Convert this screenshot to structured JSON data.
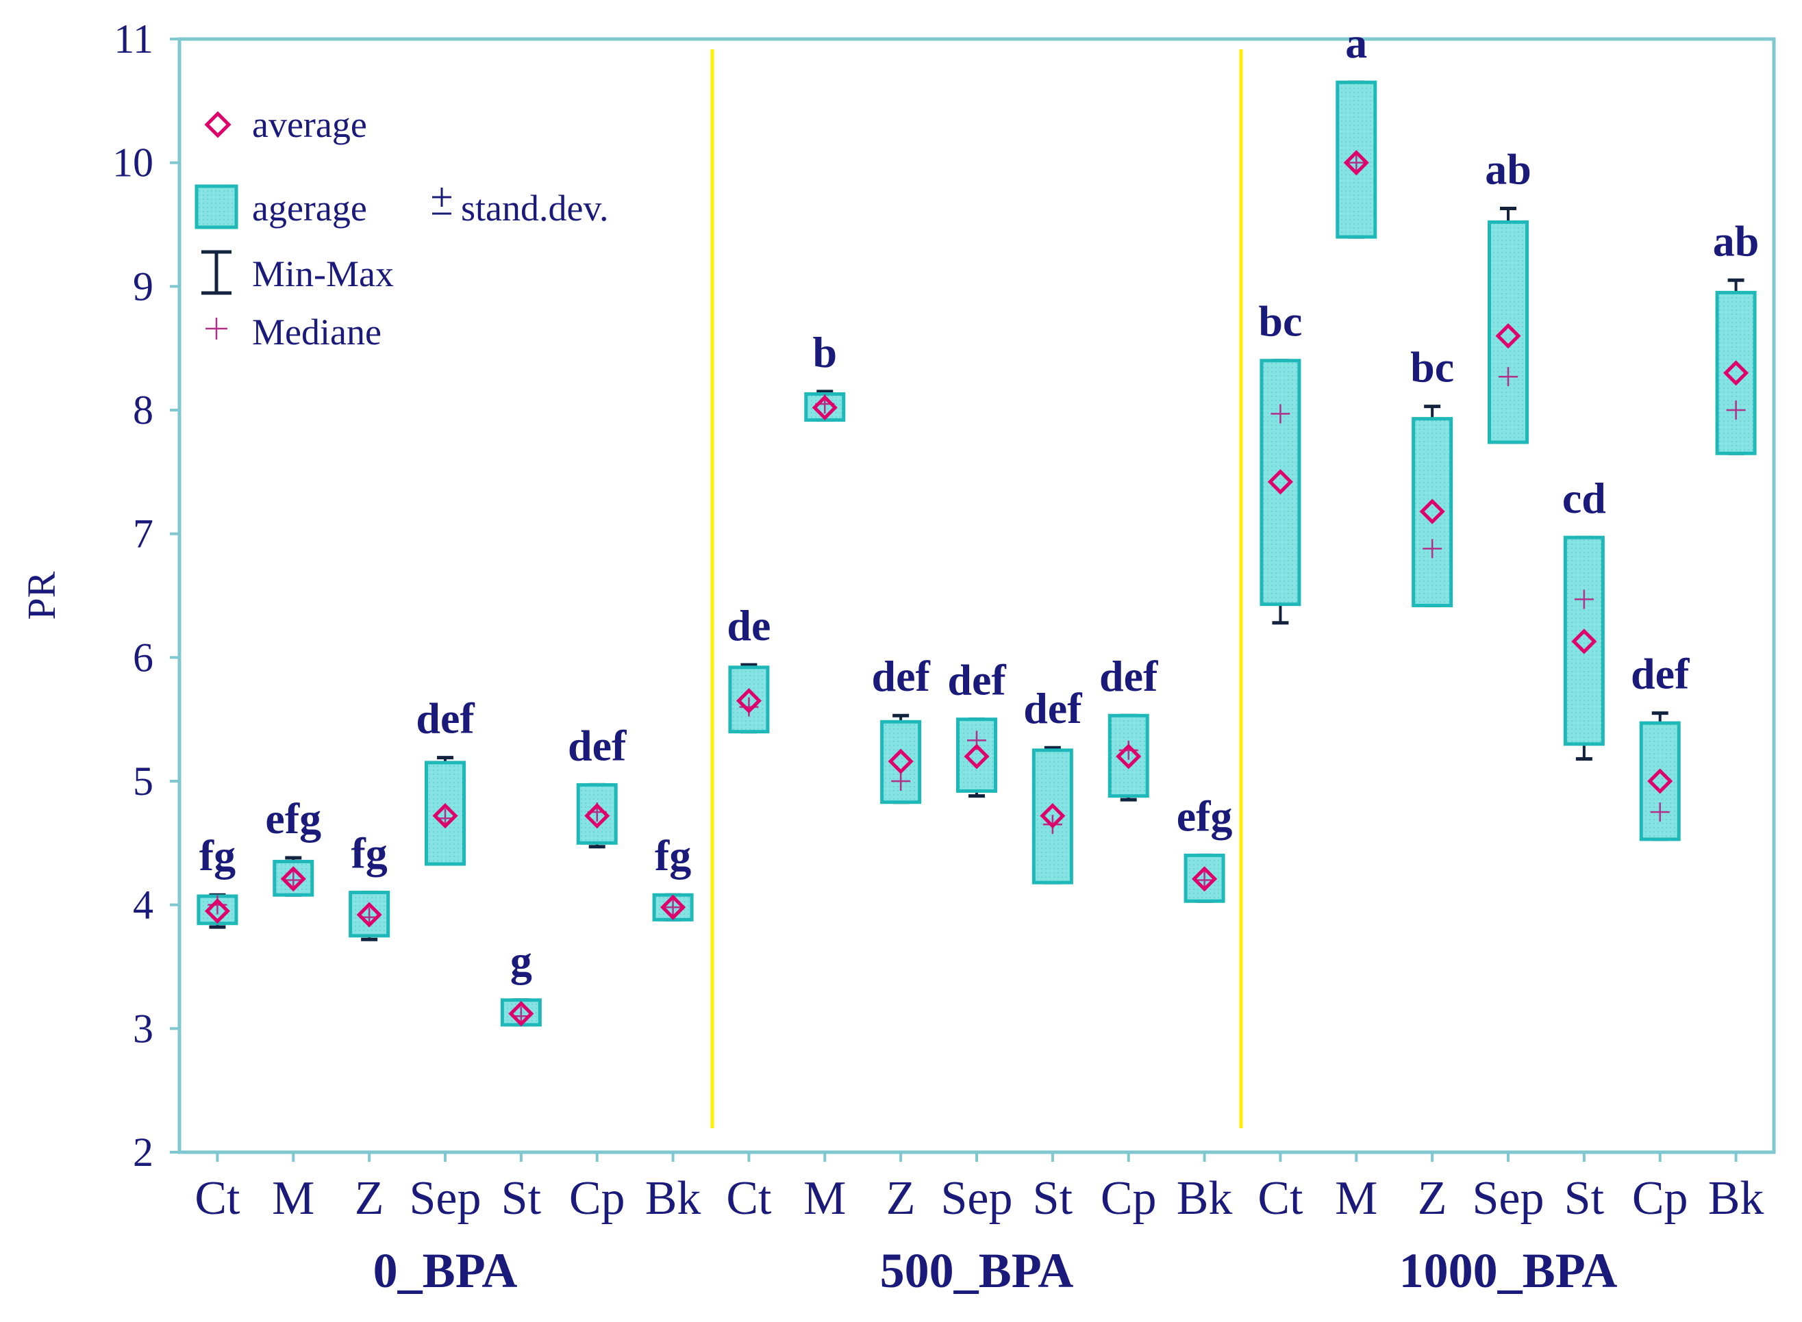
{
  "chart_data": {
    "type": "box",
    "ylabel": "PR",
    "xlabel": "",
    "ylim": [
      2,
      11
    ],
    "yticks": [
      2,
      3,
      4,
      5,
      6,
      7,
      8,
      9,
      10,
      11
    ],
    "grid": false,
    "legend": {
      "position": "top-left",
      "entries": [
        {
          "label": "average"
        },
        {
          "label": "agerage",
          "suffix": "stand.dev."
        },
        {
          "label": "Min-Max"
        },
        {
          "label": "Mediane"
        }
      ]
    },
    "groups": [
      {
        "name": "0_BPA",
        "items": [
          {
            "cat": "Ct",
            "mean": 3.95,
            "sd_low": 3.85,
            "sd_high": 4.07,
            "min": 3.82,
            "max": 4.08,
            "median": 4.0,
            "letter": "fg"
          },
          {
            "cat": "M",
            "mean": 4.21,
            "sd_low": 4.08,
            "sd_high": 4.35,
            "min": 4.08,
            "max": 4.38,
            "median": 4.2,
            "letter": "efg"
          },
          {
            "cat": "Z",
            "mean": 3.92,
            "sd_low": 3.75,
            "sd_high": 4.1,
            "min": 3.72,
            "max": 4.1,
            "median": 3.9,
            "letter": "fg"
          },
          {
            "cat": "Sep",
            "mean": 4.72,
            "sd_low": 4.33,
            "sd_high": 5.15,
            "min": 4.33,
            "max": 5.19,
            "median": 4.7,
            "letter": "def"
          },
          {
            "cat": "St",
            "mean": 3.12,
            "sd_low": 3.03,
            "sd_high": 3.23,
            "min": 3.03,
            "max": 3.23,
            "median": 3.1,
            "letter": "g"
          },
          {
            "cat": "Cp",
            "mean": 4.72,
            "sd_low": 4.5,
            "sd_high": 4.97,
            "min": 4.47,
            "max": 4.97,
            "median": 4.75,
            "letter": "def"
          },
          {
            "cat": "Bk",
            "mean": 3.98,
            "sd_low": 3.88,
            "sd_high": 4.08,
            "min": 3.88,
            "max": 4.08,
            "median": 3.98,
            "letter": "fg"
          }
        ]
      },
      {
        "name": "500_BPA",
        "items": [
          {
            "cat": "Ct",
            "mean": 5.65,
            "sd_low": 5.4,
            "sd_high": 5.92,
            "min": 5.4,
            "max": 5.94,
            "median": 5.6,
            "letter": "de"
          },
          {
            "cat": "M",
            "mean": 8.02,
            "sd_low": 7.92,
            "sd_high": 8.13,
            "min": 7.92,
            "max": 8.15,
            "median": 8.05,
            "letter": "b"
          },
          {
            "cat": "Z",
            "mean": 5.16,
            "sd_low": 4.83,
            "sd_high": 5.48,
            "min": 4.83,
            "max": 5.53,
            "median": 5.0,
            "letter": "def"
          },
          {
            "cat": "Sep",
            "mean": 5.2,
            "sd_low": 4.92,
            "sd_high": 5.5,
            "min": 4.88,
            "max": 5.5,
            "median": 5.33,
            "letter": "def"
          },
          {
            "cat": "St",
            "mean": 4.72,
            "sd_low": 4.18,
            "sd_high": 5.25,
            "min": 4.18,
            "max": 5.27,
            "median": 4.65,
            "letter": "def"
          },
          {
            "cat": "Cp",
            "mean": 5.2,
            "sd_low": 4.88,
            "sd_high": 5.53,
            "min": 4.85,
            "max": 5.53,
            "median": 5.25,
            "letter": "def"
          },
          {
            "cat": "Bk",
            "mean": 4.21,
            "sd_low": 4.03,
            "sd_high": 4.4,
            "min": 4.03,
            "max": 4.4,
            "median": 4.2,
            "letter": "efg"
          }
        ]
      },
      {
        "name": "1000_BPA",
        "items": [
          {
            "cat": "Ct",
            "mean": 7.42,
            "sd_low": 6.43,
            "sd_high": 8.4,
            "min": 6.28,
            "max": 8.4,
            "median": 7.97,
            "letter": "bc"
          },
          {
            "cat": "M",
            "mean": 10.0,
            "sd_low": 9.4,
            "sd_high": 10.65,
            "min": 9.4,
            "max": 10.65,
            "median": 10.0,
            "letter": "a"
          },
          {
            "cat": "Z",
            "mean": 7.18,
            "sd_low": 6.42,
            "sd_high": 7.93,
            "min": 6.42,
            "max": 8.03,
            "median": 6.88,
            "letter": "bc"
          },
          {
            "cat": "Sep",
            "mean": 8.6,
            "sd_low": 7.74,
            "sd_high": 9.52,
            "min": 7.74,
            "max": 9.63,
            "median": 8.27,
            "letter": "ab"
          },
          {
            "cat": "St",
            "mean": 6.13,
            "sd_low": 5.3,
            "sd_high": 6.97,
            "min": 5.18,
            "max": 6.97,
            "median": 6.47,
            "letter": "cd"
          },
          {
            "cat": "Cp",
            "mean": 5.0,
            "sd_low": 4.53,
            "sd_high": 5.47,
            "min": 4.53,
            "max": 5.55,
            "median": 4.75,
            "letter": "def"
          },
          {
            "cat": "Bk",
            "mean": 8.3,
            "sd_low": 7.65,
            "sd_high": 8.95,
            "min": 7.65,
            "max": 9.05,
            "median": 8.0,
            "letter": "ab"
          }
        ]
      }
    ],
    "colors": {
      "axis": "#7fc8d0",
      "text": "#1a1a7a",
      "box_fill": "#7fe0e0",
      "box_stroke": "#1fb8b8",
      "whisker": "#13233f",
      "mean_marker": "#e0006a",
      "median_marker": "#b0308a",
      "separator": "#ffee00"
    }
  }
}
